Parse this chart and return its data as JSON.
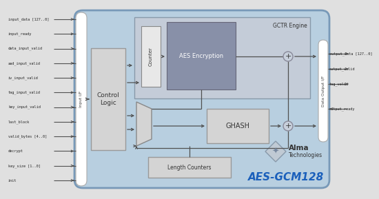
{
  "bg_outer": "#e0e0e0",
  "bg_main": "#b8cfe0",
  "bg_inner": "#c0cdd8",
  "color_white": "#ffffff",
  "color_light_gray": "#d4d4d4",
  "color_dark_gray": "#8888a0",
  "color_gctr_bg": "#c4ccd8",
  "color_aes": "#8890a8",
  "color_border_blue": "#7899b8",
  "color_arrow": "#505050",
  "color_title": "#1a5fbb",
  "input_labels": [
    "input_data [127..0]",
    "input_ready",
    "data_input_valid",
    "aad_input_valid",
    "iv_input_valid",
    "tag_input_valid",
    "key_input_valid",
    "last_block",
    "valid_bytes [4..0]",
    "decrypt",
    "key_size [1..0]",
    "init"
  ],
  "output_labels": [
    "output_data [127..0]",
    "output_valid",
    "tag_valid",
    "output_ready"
  ],
  "output_has_outward_arrow": [
    true,
    true,
    true,
    false
  ],
  "title": "AES-GCM128",
  "input_if_label": "Input I/F",
  "output_if_label": "Data Output I/F",
  "control_logic_label": "Control\nLogic",
  "counter_label": "Counter",
  "aes_label": "AES Encryption",
  "gctr_label": "GCTR Engine",
  "ghash_label": "GHASH",
  "length_label": "Length Counters",
  "alma_label1": "Alma",
  "alma_label2": "Technologies"
}
